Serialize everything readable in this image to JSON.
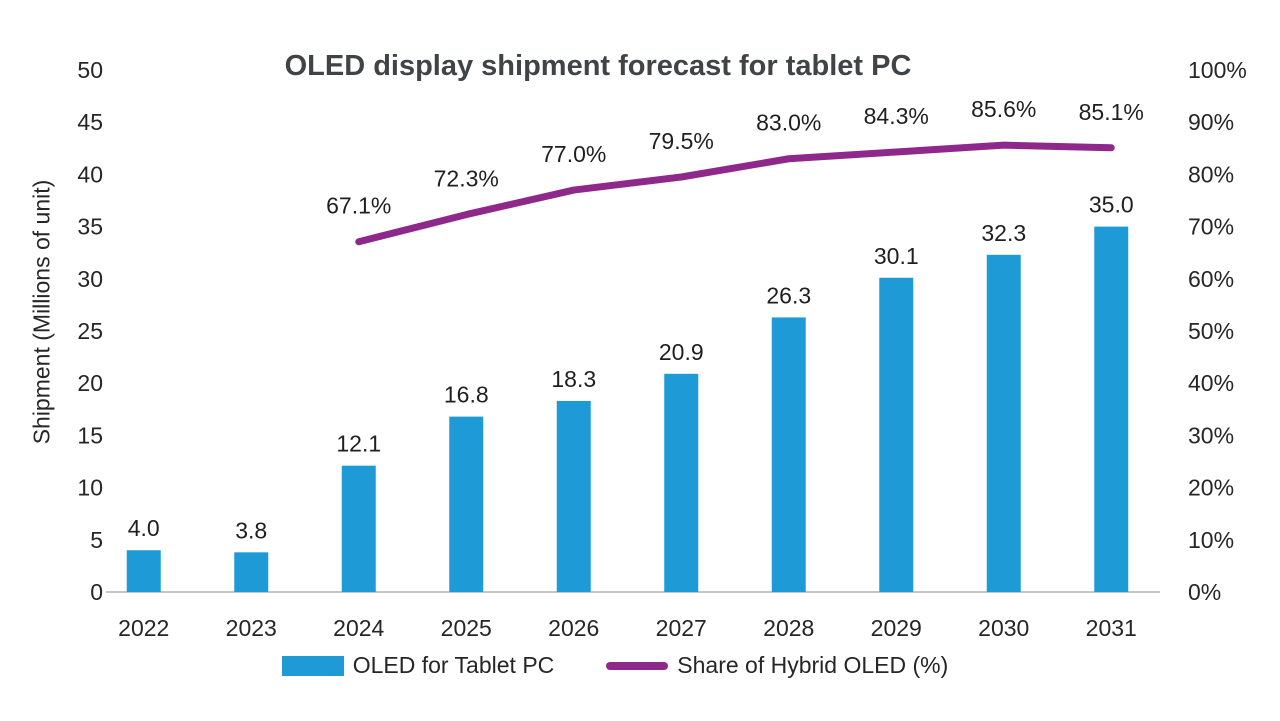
{
  "chart_data": {
    "type": "combo",
    "title": "OLED display shipment forecast for tablet PC",
    "categories": [
      "2022",
      "2023",
      "2024",
      "2025",
      "2026",
      "2027",
      "2028",
      "2029",
      "2030",
      "2031"
    ],
    "series": [
      {
        "name": "OLED for Tablet PC",
        "type": "bar",
        "axis": "left",
        "color": "#1E9BD7",
        "values": [
          4.0,
          3.8,
          12.1,
          16.8,
          18.3,
          20.9,
          26.3,
          30.1,
          32.3,
          35.0
        ],
        "labels": [
          "4.0",
          "3.8",
          "12.1",
          "16.8",
          "18.3",
          "20.9",
          "26.3",
          "30.1",
          "32.3",
          "35.0"
        ]
      },
      {
        "name": "Share of Hybrid OLED (%)",
        "type": "line",
        "axis": "right",
        "color": "#8E288B",
        "values": [
          null,
          null,
          67.1,
          72.3,
          77.0,
          79.5,
          83.0,
          84.3,
          85.6,
          85.1
        ],
        "labels": [
          null,
          null,
          "67.1%",
          "72.3%",
          "77.0%",
          "79.5%",
          "83.0%",
          "84.3%",
          "85.6%",
          "85.1%"
        ]
      }
    ],
    "left_axis": {
      "label": "Shipment (Millions of unit)",
      "min": 0,
      "max": 50,
      "ticks": [
        "0",
        "5",
        "10",
        "15",
        "20",
        "25",
        "30",
        "35",
        "40",
        "45",
        "50"
      ]
    },
    "right_axis": {
      "min": 0,
      "max": 100,
      "ticks": [
        "0%",
        "10%",
        "20%",
        "30%",
        "40%",
        "50%",
        "60%",
        "70%",
        "80%",
        "90%",
        "100%"
      ]
    },
    "legend": [
      {
        "label": "OLED for Tablet PC",
        "swatch": "bar",
        "color": "#1E9BD7"
      },
      {
        "label": "Share of Hybrid OLED (%)",
        "swatch": "line",
        "color": "#8E288B"
      }
    ],
    "grid": "off",
    "legend_position": "bottom",
    "axis_line_color": "#C6C6C6"
  }
}
